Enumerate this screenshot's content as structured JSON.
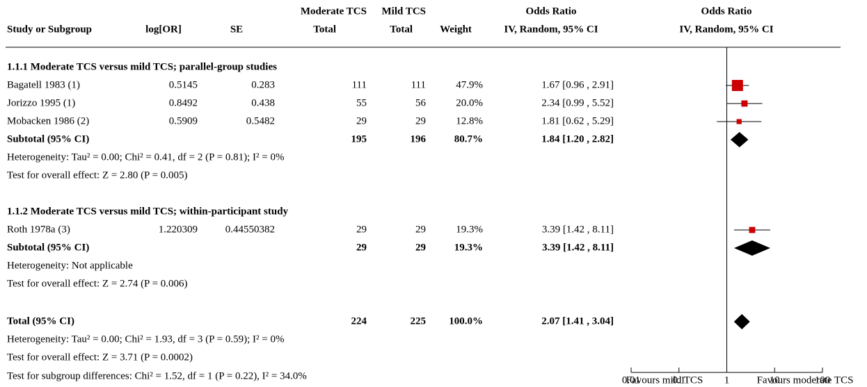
{
  "chart_data": {
    "type": "forest",
    "columns": {
      "study": "Study or Subgroup",
      "log_or": "log[OR]",
      "se": "SE",
      "exp_group": "Moderate TCS",
      "exp_total": "Total",
      "ctrl_group": "Mild TCS",
      "ctrl_total": "Total",
      "weight": "Weight",
      "or_title": "Odds Ratio",
      "or_method": "IV, Random, 95% CI",
      "plot_title": "Odds Ratio",
      "plot_method": "IV, Random, 95% CI"
    },
    "groups": [
      {
        "heading": "1.1.1 Moderate TCS versus mild TCS; parallel-group studies",
        "studies": [
          {
            "name": "Bagatell 1983 (1)",
            "log_or": 0.5145,
            "se": 0.283,
            "exp_total": 111,
            "ctrl_total": 111,
            "weight": 47.9,
            "weight_label": "47.9%",
            "or": 1.67,
            "ci": [
              0.96,
              2.91
            ],
            "or_label": "1.67 [0.96 , 2.91]"
          },
          {
            "name": "Jorizzo 1995 (1)",
            "log_or": 0.8492,
            "se": 0.438,
            "exp_total": 55,
            "ctrl_total": 56,
            "weight": 20.0,
            "weight_label": "20.0%",
            "or": 2.34,
            "ci": [
              0.99,
              5.52
            ],
            "or_label": "2.34 [0.99 , 5.52]"
          },
          {
            "name": "Mobacken 1986 (2)",
            "log_or": 0.5909,
            "se": 0.5482,
            "exp_total": 29,
            "ctrl_total": 29,
            "weight": 12.8,
            "weight_label": "12.8%",
            "or": 1.81,
            "ci": [
              0.62,
              5.29
            ],
            "or_label": "1.81 [0.62 , 5.29]"
          }
        ],
        "subtotal": {
          "name": "Subtotal (95% CI)",
          "exp_total": 195,
          "ctrl_total": 196,
          "weight": 80.7,
          "weight_label": "80.7%",
          "or": 1.84,
          "ci": [
            1.2,
            2.82
          ],
          "or_label": "1.84 [1.20 , 2.82]"
        },
        "heterogeneity": "Heterogeneity: Tau² = 0.00; Chi² = 0.41, df = 2 (P = 0.81); I² = 0%",
        "overall": "Test for overall effect: Z = 2.80 (P = 0.005)"
      },
      {
        "heading": "1.1.2 Moderate TCS versus mild TCS; within-participant study",
        "studies": [
          {
            "name": "Roth 1978a (3)",
            "log_or": 1.220309,
            "se": 0.44550382,
            "exp_total": 29,
            "ctrl_total": 29,
            "weight": 19.3,
            "weight_label": "19.3%",
            "or": 3.39,
            "ci": [
              1.42,
              8.11
            ],
            "or_label": "3.39 [1.42 , 8.11]"
          }
        ],
        "subtotal": {
          "name": "Subtotal (95% CI)",
          "exp_total": 29,
          "ctrl_total": 29,
          "weight": 19.3,
          "weight_label": "19.3%",
          "or": 3.39,
          "ci": [
            1.42,
            8.11
          ],
          "or_label": "3.39 [1.42 , 8.11]"
        },
        "heterogeneity": "Heterogeneity: Not applicable",
        "overall": "Test for overall effect: Z = 2.74 (P = 0.006)"
      }
    ],
    "total": {
      "name": "Total (95% CI)",
      "exp_total": 224,
      "ctrl_total": 225,
      "weight": 100.0,
      "weight_label": "100.0%",
      "or": 2.07,
      "ci": [
        1.41,
        3.04
      ],
      "or_label": "2.07 [1.41 , 3.04]",
      "heterogeneity": "Heterogeneity: Tau² = 0.00; Chi² = 1.93, df = 3 (P = 0.59); I² = 0%",
      "overall": "Test for overall effect: Z = 3.71 (P = 0.0002)",
      "subgroup": "Test for subgroup differences: Chi² = 1.52, df = 1 (P = 0.22), I² = 34.0%"
    },
    "xlim": [
      0.01,
      100
    ],
    "xticks": [
      0.01,
      0.1,
      1,
      10,
      100
    ],
    "log_scale": true,
    "favours": [
      "Favours mild TCS",
      "Favours moderate TCS"
    ],
    "study_color": "#cc0000",
    "pooled_color": "#000000"
  }
}
